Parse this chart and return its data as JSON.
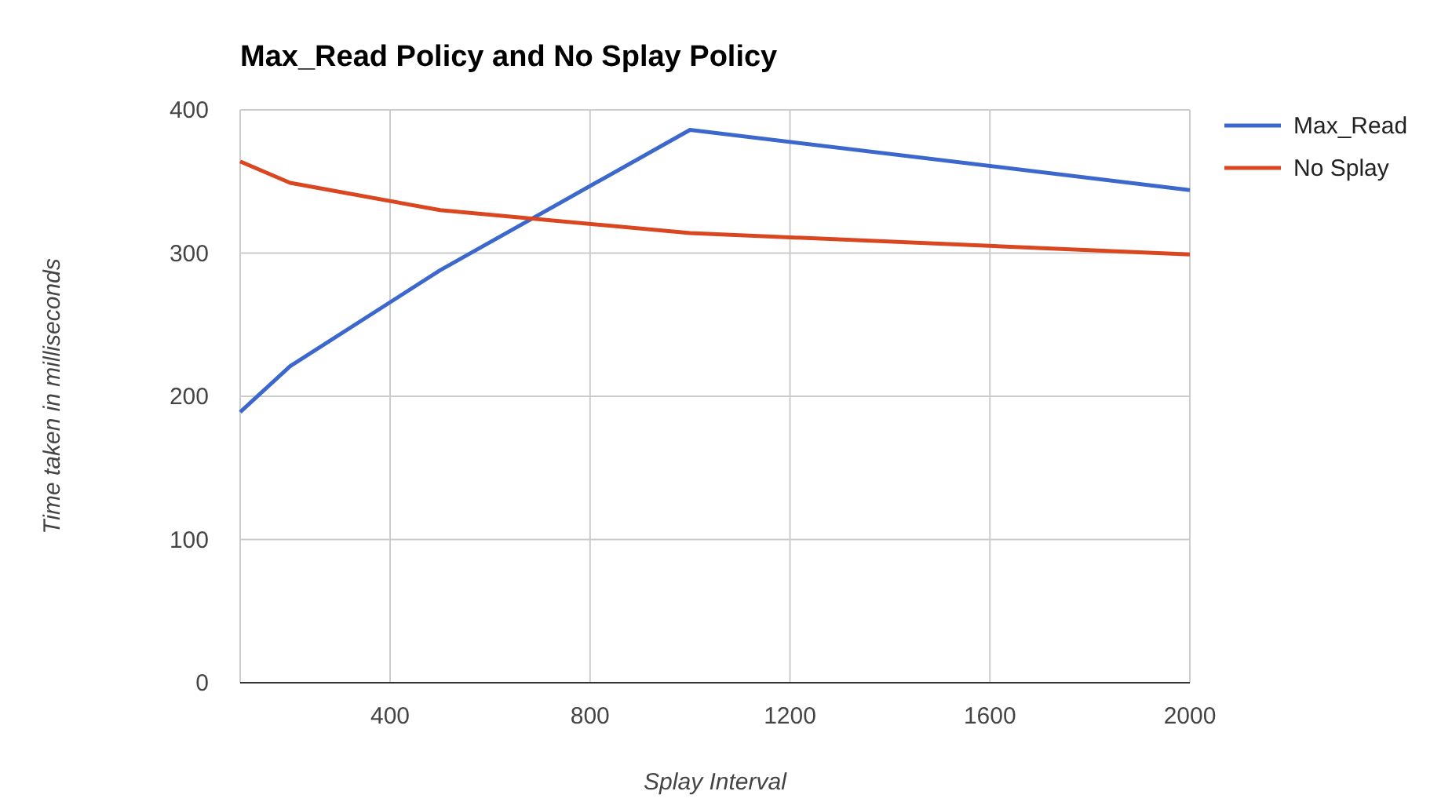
{
  "chart_data": {
    "type": "line",
    "title": "Max_Read Policy and No Splay Policy",
    "xlabel": "Splay Interval",
    "ylabel": "Time taken in milliseconds",
    "x": [
      100,
      200,
      500,
      1000,
      2000
    ],
    "series": [
      {
        "name": "Max_Read",
        "color": "#3c68cd",
        "values": [
          189,
          221,
          288,
          386,
          344
        ]
      },
      {
        "name": "No Splay",
        "color": "#d9461f",
        "values": [
          364,
          349,
          330,
          314,
          299
        ]
      }
    ],
    "xlim": [
      100,
      2000
    ],
    "xticks": [
      400,
      800,
      1200,
      1600,
      2000
    ],
    "ylim": [
      0,
      400
    ],
    "yticks": [
      0,
      100,
      200,
      300,
      400
    ],
    "grid": true,
    "legend": "right",
    "marker": "none",
    "line_style": "solid"
  }
}
